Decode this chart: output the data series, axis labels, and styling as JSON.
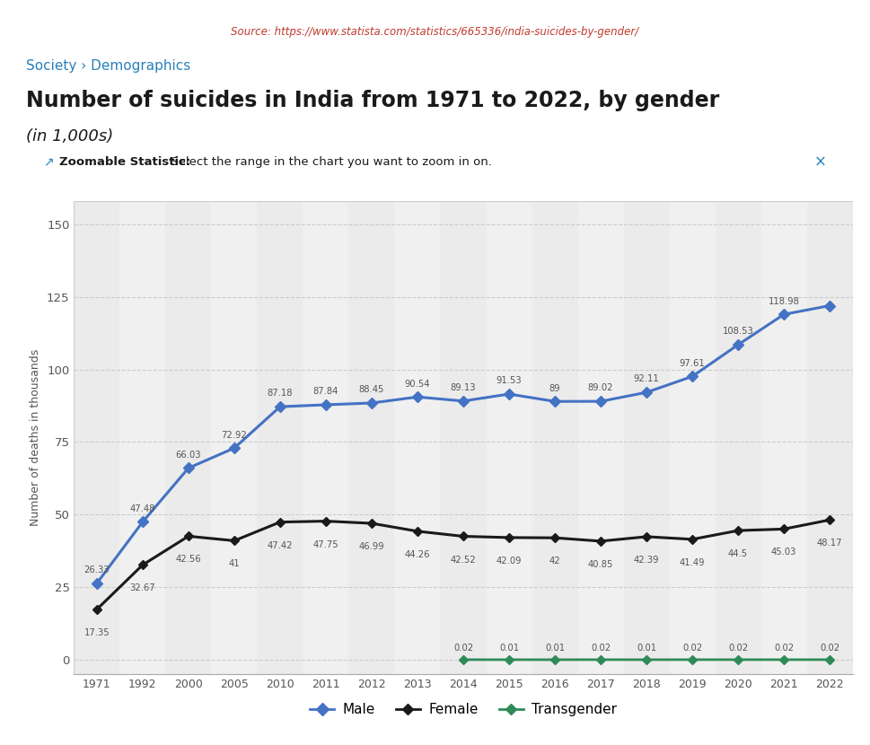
{
  "source_text": "Source: https://www.statista.com/statistics/665336/india-suicides-by-gender/",
  "breadcrumb": "Society › Demographics",
  "title": "Number of suicides in India from 1971 to 2022, by gender",
  "subtitle": "(in 1,000s)",
  "ylabel": "Number of deaths in thousands",
  "years": [
    "1971",
    "1992",
    "2000",
    "2005",
    "2010",
    "2011",
    "2012",
    "2013",
    "2014",
    "2015",
    "2016",
    "2017",
    "2018",
    "2019",
    "2020",
    "2021",
    "2022"
  ],
  "male": [
    26.33,
    47.48,
    66.03,
    72.92,
    87.18,
    87.84,
    88.45,
    90.54,
    89.13,
    91.53,
    89,
    89.02,
    92.11,
    97.61,
    108.53,
    118.98,
    122.0
  ],
  "female": [
    17.35,
    32.67,
    42.56,
    41,
    47.42,
    47.75,
    46.99,
    44.26,
    42.52,
    42.09,
    42,
    40.85,
    42.39,
    41.49,
    44.5,
    45.03,
    48.17
  ],
  "transgender": [
    null,
    null,
    null,
    null,
    null,
    null,
    null,
    null,
    0.02,
    0.01,
    0.01,
    0.02,
    0.01,
    0.02,
    0.02,
    0.02,
    0.02
  ],
  "male_labels": [
    "26.33",
    "47.48",
    "66.03",
    "72.92",
    "87.18",
    "87.84",
    "88.45",
    "90.54",
    "89.13",
    "91.53",
    "89",
    "89.02",
    "92.11",
    "97.61",
    "108.53",
    "118.98",
    ""
  ],
  "female_labels": [
    "17.35",
    "32.67",
    "42.56",
    "41",
    "47.42",
    "47.75",
    "46.99",
    "44.26",
    "42.52",
    "42.09",
    "42",
    "40.85",
    "42.39",
    "41.49",
    "44.5",
    "45.03",
    "48.17"
  ],
  "transgender_labels": [
    "",
    "",
    "",
    "",
    "",
    "",
    "",
    "",
    "0.02",
    "0.01",
    "0.01",
    "0.02",
    "0.01",
    "0.02",
    "0.02",
    "0.02",
    "0.02"
  ],
  "male_color": "#4472C4",
  "female_color": "#1a1a1a",
  "transgender_color": "#2E8B57",
  "yticks": [
    0,
    25,
    50,
    75,
    100,
    125,
    150
  ],
  "ylim": [
    -5,
    158
  ],
  "grid_color": "#cccccc",
  "source_color": "#c0392b",
  "breadcrumb_color": "#2980b9",
  "title_color": "#1a1a1a",
  "subtitle_color": "#1a1a1a",
  "zoomable_bg": "#dce8f5",
  "zoomable_border": "#aac4e0",
  "zoomable_bold": "Zoomable Statistic:",
  "zoomable_rest": " Select the range in the chart you want to zoom in on.",
  "x_color": "#555555",
  "annotation_color": "#555555",
  "col_colors": [
    "#ebebeb",
    "#f0f0f0"
  ]
}
